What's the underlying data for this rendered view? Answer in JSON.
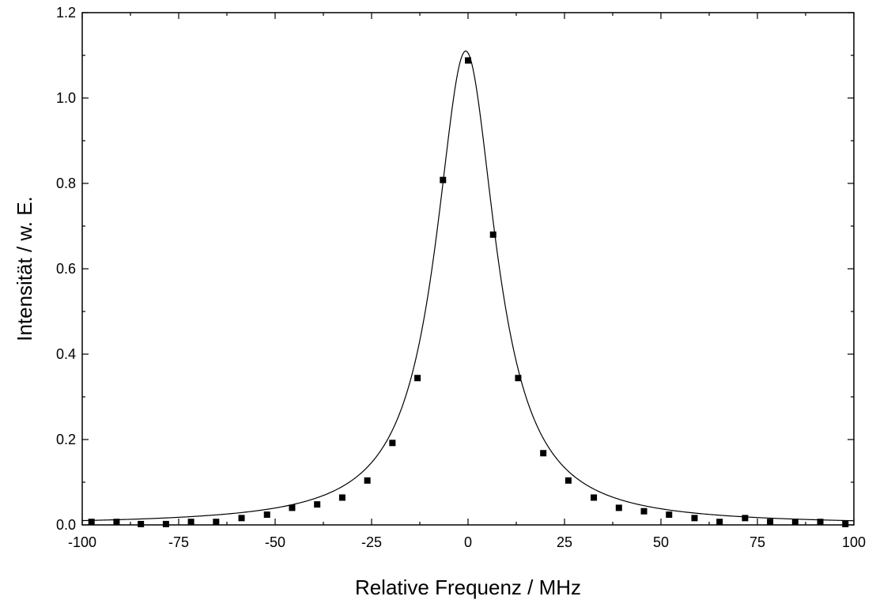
{
  "chart_data": {
    "type": "scatter",
    "title": "",
    "xlabel": "Relative Frequenz / MHz",
    "ylabel": "Intensität / w. E.",
    "xlim": [
      -100,
      100
    ],
    "ylim": [
      0.0,
      1.2
    ],
    "x_ticks": [
      -100,
      -75,
      -50,
      -25,
      0,
      25,
      50,
      75,
      100
    ],
    "x_tick_labels": [
      "-100",
      "-75",
      "-50",
      "-25",
      "0",
      "25",
      "50",
      "75",
      "100"
    ],
    "y_ticks": [
      0.0,
      0.2,
      0.4,
      0.6,
      0.8,
      1.0,
      1.2
    ],
    "y_tick_labels": [
      "0.0",
      "0.2",
      "0.4",
      "0.6",
      "0.8",
      "1.0",
      "1.2"
    ],
    "grid": false,
    "legend": "none",
    "series": [
      {
        "kind": "points",
        "marker": "square",
        "color": "#000000",
        "x": [
          -97.6,
          -91.1,
          -84.8,
          -78.3,
          -71.8,
          -65.3,
          -58.7,
          -52.1,
          -45.6,
          -39.1,
          -32.6,
          -26.1,
          -19.6,
          -13.1,
          -6.5,
          0.0,
          6.5,
          13.0,
          19.5,
          26.0,
          32.6,
          39.1,
          45.6,
          52.1,
          58.7,
          65.2,
          71.8,
          78.3,
          84.8,
          91.3,
          97.8
        ],
        "y": [
          0.007,
          0.007,
          0.002,
          0.002,
          0.007,
          0.007,
          0.016,
          0.024,
          0.04,
          0.048,
          0.064,
          0.104,
          0.192,
          0.344,
          0.808,
          1.088,
          0.68,
          0.344,
          0.168,
          0.104,
          0.064,
          0.04,
          0.032,
          0.024,
          0.016,
          0.007,
          0.016,
          0.007,
          0.007,
          0.007,
          0.002
        ]
      },
      {
        "kind": "fit-line",
        "model": "lorentzian",
        "color": "#000000",
        "center": -0.6,
        "amplitude": 1.11,
        "hwhm": 9.5
      }
    ]
  }
}
